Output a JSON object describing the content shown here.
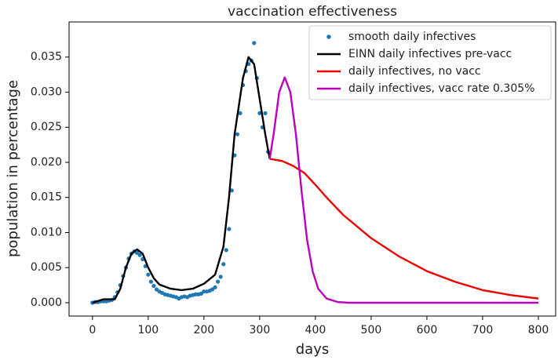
{
  "chart_data": {
    "type": "line",
    "title": "vaccination effectiveness",
    "xlabel": "days",
    "ylabel": "population in percentage",
    "xlim": [
      -42,
      831
    ],
    "xticks": [
      0,
      100,
      200,
      300,
      400,
      500,
      600,
      700,
      800
    ],
    "ylim": [
      -0.0019,
      0.04
    ],
    "yticks": [
      {
        "value": 0,
        "label": "0.000"
      },
      0.005,
      {
        "value": 0.01,
        "label": "0.010"
      },
      0.015,
      {
        "value": 0.02,
        "label": "0.020"
      },
      0.025,
      {
        "value": 0.03,
        "label": "0.030"
      },
      0.035
    ],
    "legend": "upper right",
    "series": [
      {
        "name": "smooth daily infectives",
        "color": "#1f77b4",
        "type": "scatter",
        "x": [
          0,
          5,
          10,
          15,
          20,
          25,
          30,
          35,
          40,
          45,
          50,
          55,
          60,
          65,
          70,
          75,
          80,
          85,
          90,
          95,
          100,
          105,
          110,
          115,
          120,
          125,
          130,
          135,
          140,
          145,
          150,
          155,
          160,
          165,
          170,
          175,
          180,
          185,
          190,
          195,
          200,
          205,
          210,
          215,
          220,
          225,
          230,
          235,
          240,
          245,
          250,
          255,
          260,
          265,
          270,
          275,
          280,
          285,
          290,
          295,
          300,
          305,
          310,
          315
        ],
        "values": [
          0,
          0.0001,
          0.0001,
          0.0002,
          0.0002,
          0.0002,
          0.0003,
          0.0004,
          0.0008,
          0.0015,
          0.0025,
          0.0038,
          0.005,
          0.0063,
          0.007,
          0.0073,
          0.0071,
          0.0068,
          0.0062,
          0.0052,
          0.004,
          0.003,
          0.0024,
          0.0019,
          0.0016,
          0.0014,
          0.0012,
          0.0011,
          0.001,
          0.0009,
          0.0008,
          0.0006,
          0.0008,
          0.0009,
          0.0008,
          0.001,
          0.0011,
          0.0012,
          0.0012,
          0.0013,
          0.0016,
          0.0016,
          0.0017,
          0.0019,
          0.0022,
          0.003,
          0.0037,
          0.0055,
          0.0075,
          0.0105,
          0.016,
          0.021,
          0.024,
          0.027,
          0.031,
          0.033,
          0.034,
          0.0345,
          0.037,
          0.032,
          0.027,
          0.025,
          0.027,
          0.0215
        ]
      },
      {
        "name": "EINN daily infectives pre-vacc",
        "color": "#000000",
        "type": "line",
        "x": [
          0,
          20,
          40,
          50,
          60,
          70,
          80,
          90,
          100,
          110,
          120,
          140,
          160,
          180,
          200,
          220,
          235,
          245,
          255,
          270,
          280,
          290,
          300,
          310,
          318
        ],
        "values": [
          0,
          0.0005,
          0.0005,
          0.002,
          0.005,
          0.007,
          0.0076,
          0.007,
          0.005,
          0.0035,
          0.0026,
          0.002,
          0.0018,
          0.002,
          0.0027,
          0.004,
          0.008,
          0.015,
          0.024,
          0.032,
          0.035,
          0.034,
          0.029,
          0.024,
          0.0205
        ]
      },
      {
        "name": "daily infectives, no vacc",
        "color": "#ee0000",
        "type": "line",
        "x": [
          318,
          340,
          360,
          380,
          400,
          420,
          450,
          500,
          550,
          600,
          650,
          700,
          750,
          800
        ],
        "values": [
          0.0205,
          0.0202,
          0.0195,
          0.0185,
          0.0168,
          0.015,
          0.0125,
          0.0092,
          0.0066,
          0.0045,
          0.003,
          0.0018,
          0.0011,
          0.0006
        ]
      },
      {
        "name": "daily infectives, vacc rate 0.305%",
        "color": "#bb00bb",
        "type": "line",
        "x": [
          318,
          325,
          335,
          345,
          355,
          365,
          375,
          385,
          395,
          405,
          420,
          440,
          460,
          800
        ],
        "values": [
          0.0205,
          0.024,
          0.03,
          0.0321,
          0.03,
          0.024,
          0.016,
          0.009,
          0.0045,
          0.002,
          0.0006,
          0.0001,
          0,
          0
        ]
      }
    ]
  }
}
